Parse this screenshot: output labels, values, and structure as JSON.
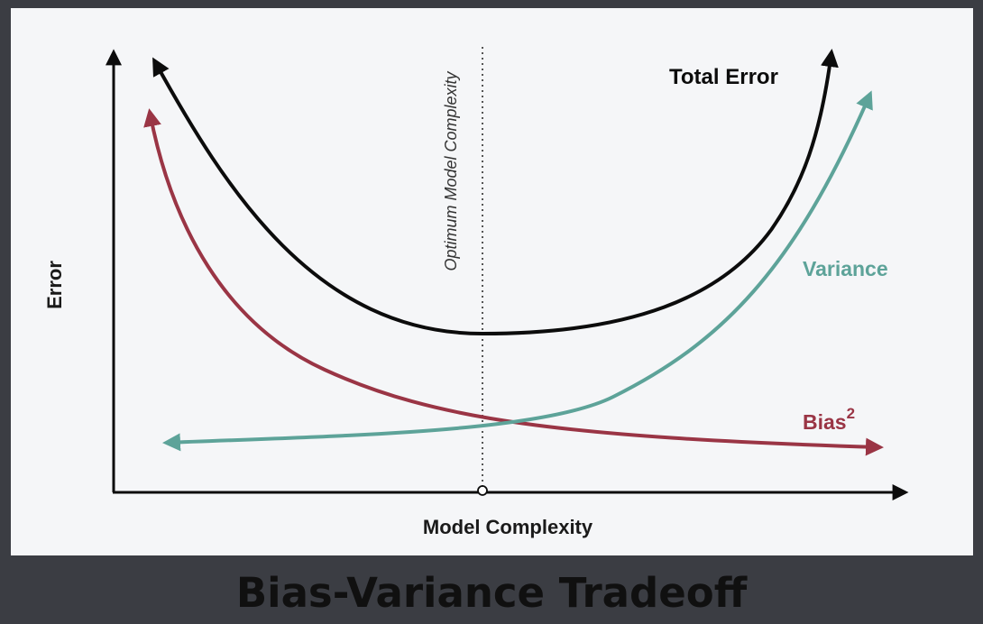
{
  "diagram": {
    "y_axis_label": "Error",
    "x_axis_label": "Model Complexity",
    "optimum_label": "Optimum Model Complexity",
    "curves": [
      {
        "name": "Total Error",
        "color": "#0c0c0c"
      },
      {
        "name": "Variance",
        "color": "#5da399"
      },
      {
        "name": "Bias",
        "superscript": "2",
        "color": "#9a3545"
      }
    ]
  },
  "banner": {
    "title": "Bias-Variance Tradeoff"
  }
}
